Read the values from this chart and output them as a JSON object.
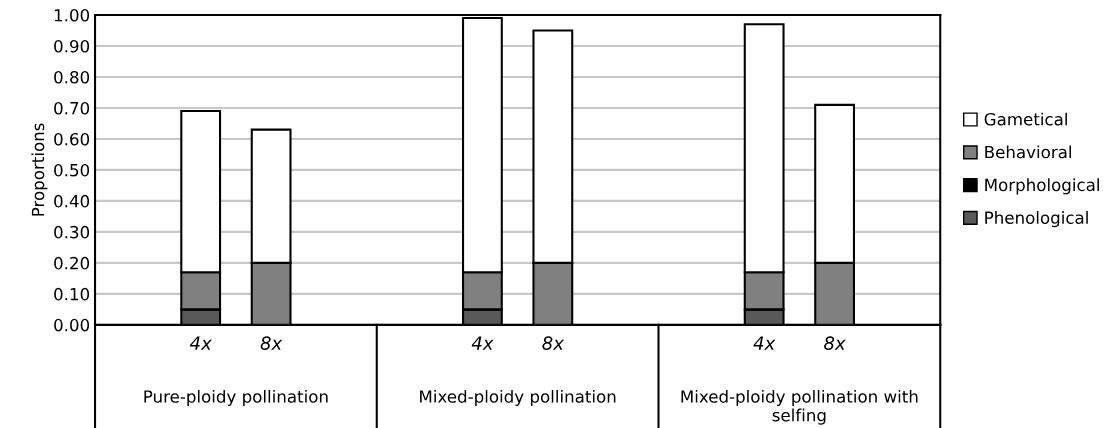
{
  "chart_data": {
    "type": "bar",
    "stacked": true,
    "ylabel": "Proportions",
    "categories": [
      null,
      "4x",
      "8x",
      null,
      null,
      "4x",
      "8x",
      null,
      null,
      "4x",
      "8x",
      null
    ],
    "series": [
      {
        "name": "Phenological",
        "color": "#595959",
        "values": [
          null,
          0.05,
          0,
          null,
          null,
          0.05,
          0,
          null,
          null,
          0.05,
          0,
          null
        ]
      },
      {
        "name": "Morphological",
        "color": "#000000",
        "values": [
          null,
          0,
          0,
          null,
          null,
          0,
          0,
          null,
          null,
          0,
          0,
          null
        ]
      },
      {
        "name": "Behavioral",
        "color": "#808080",
        "values": [
          null,
          0.12,
          0.2,
          null,
          null,
          0.12,
          0.2,
          null,
          null,
          0.12,
          0.2,
          null
        ]
      },
      {
        "name": "Gametical",
        "color": "#ffffff",
        "values": [
          null,
          0.52,
          0.43,
          null,
          null,
          0.82,
          0.75,
          null,
          null,
          0.8,
          0.51,
          null
        ]
      }
    ],
    "annotations": [
      "Pure-ploidy pollination",
      "Mixed-ploidy pollination",
      "Mixed-ploidy pollination with\nselfing"
    ],
    "ylim": [
      0,
      1.0
    ],
    "yticks": [
      {
        "value": 0,
        "label": "0.00"
      },
      {
        "value": 0.1,
        "label": "0.10"
      },
      {
        "value": 0.2,
        "label": "0.20"
      },
      {
        "value": 0.3,
        "label": "0.30"
      },
      {
        "value": 0.4,
        "label": "0.40"
      },
      {
        "value": 0.5,
        "label": "0.50"
      },
      {
        "value": 0.6,
        "label": "0.60"
      },
      {
        "value": 0.7,
        "label": "0.70"
      },
      {
        "value": 0.8,
        "label": "0.80"
      },
      {
        "value": 0.9,
        "label": "0.90"
      },
      {
        "value": 1.0,
        "label": "1.00"
      }
    ],
    "grid": "y",
    "legend": "right"
  }
}
